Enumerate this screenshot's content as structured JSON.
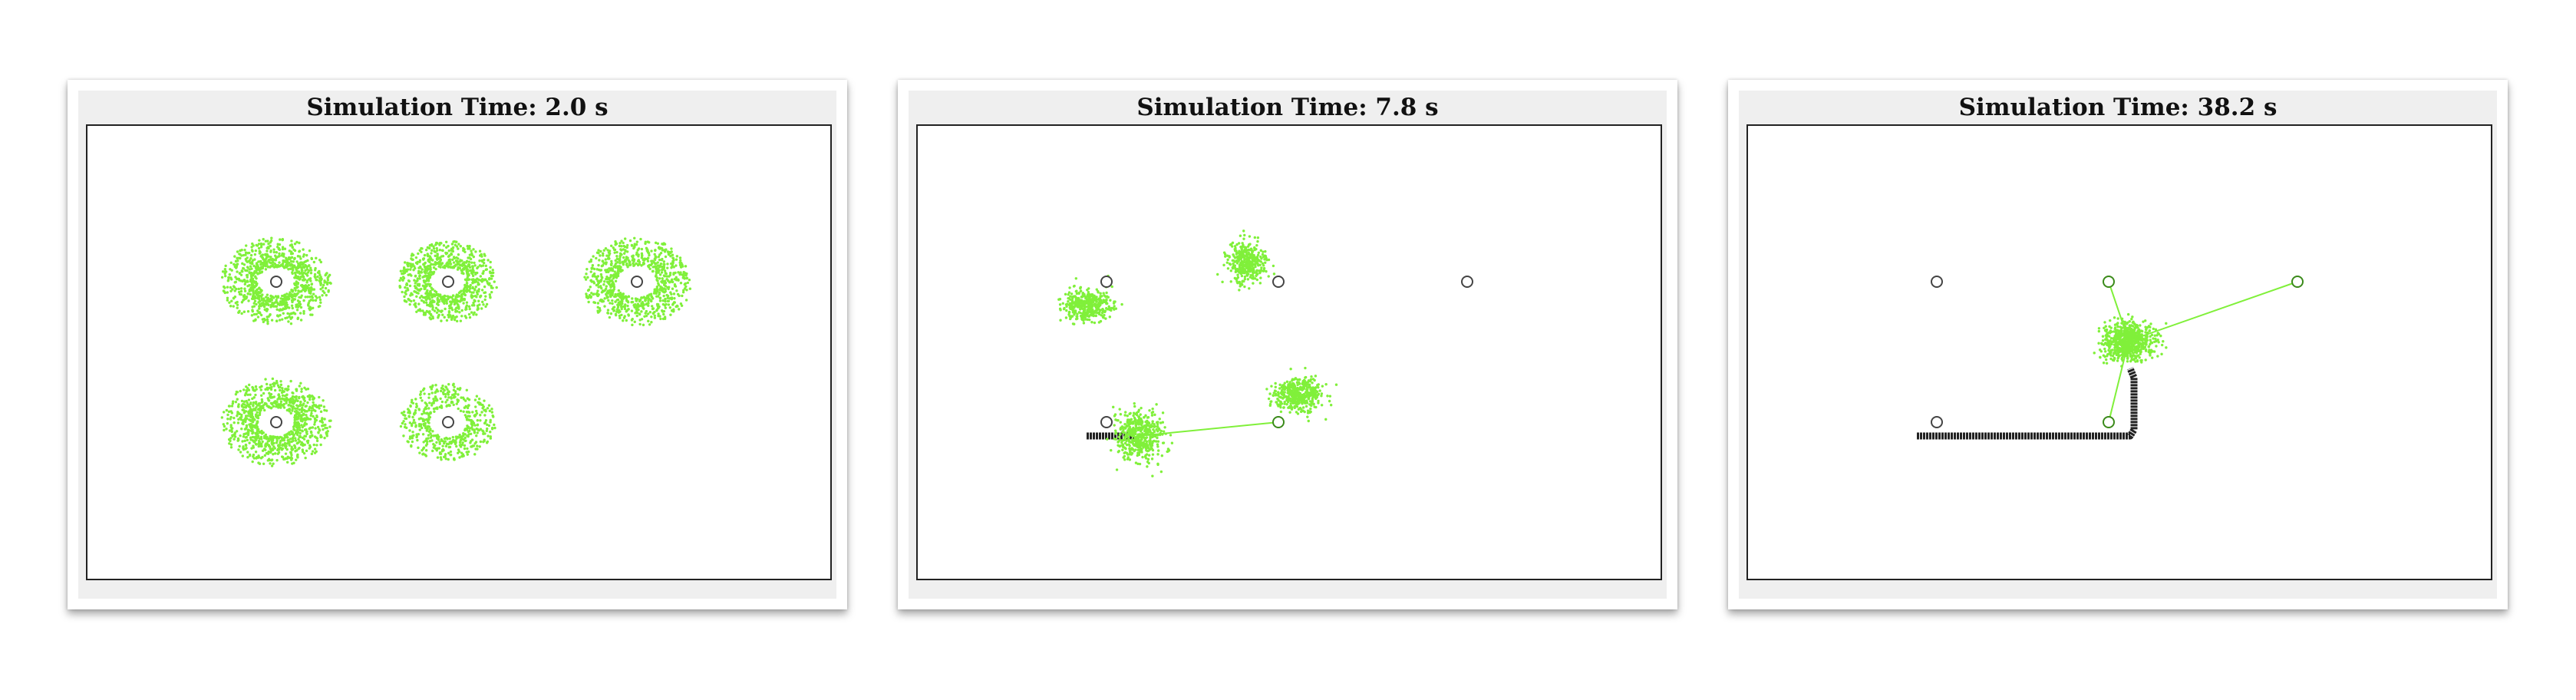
{
  "colors": {
    "background": "#ffffff",
    "panel_background": "#efefef",
    "particle": "#80f03a",
    "link": "#80f03a",
    "trail": "#222222",
    "waypoint_stroke": "#444444",
    "frame": "#222222"
  },
  "panels": [
    {
      "title": "Simulation Time: 2.0 s"
    },
    {
      "title": "Simulation Time: 7.8 s"
    },
    {
      "title": "Simulation Time: 38.2 s"
    }
  ]
}
